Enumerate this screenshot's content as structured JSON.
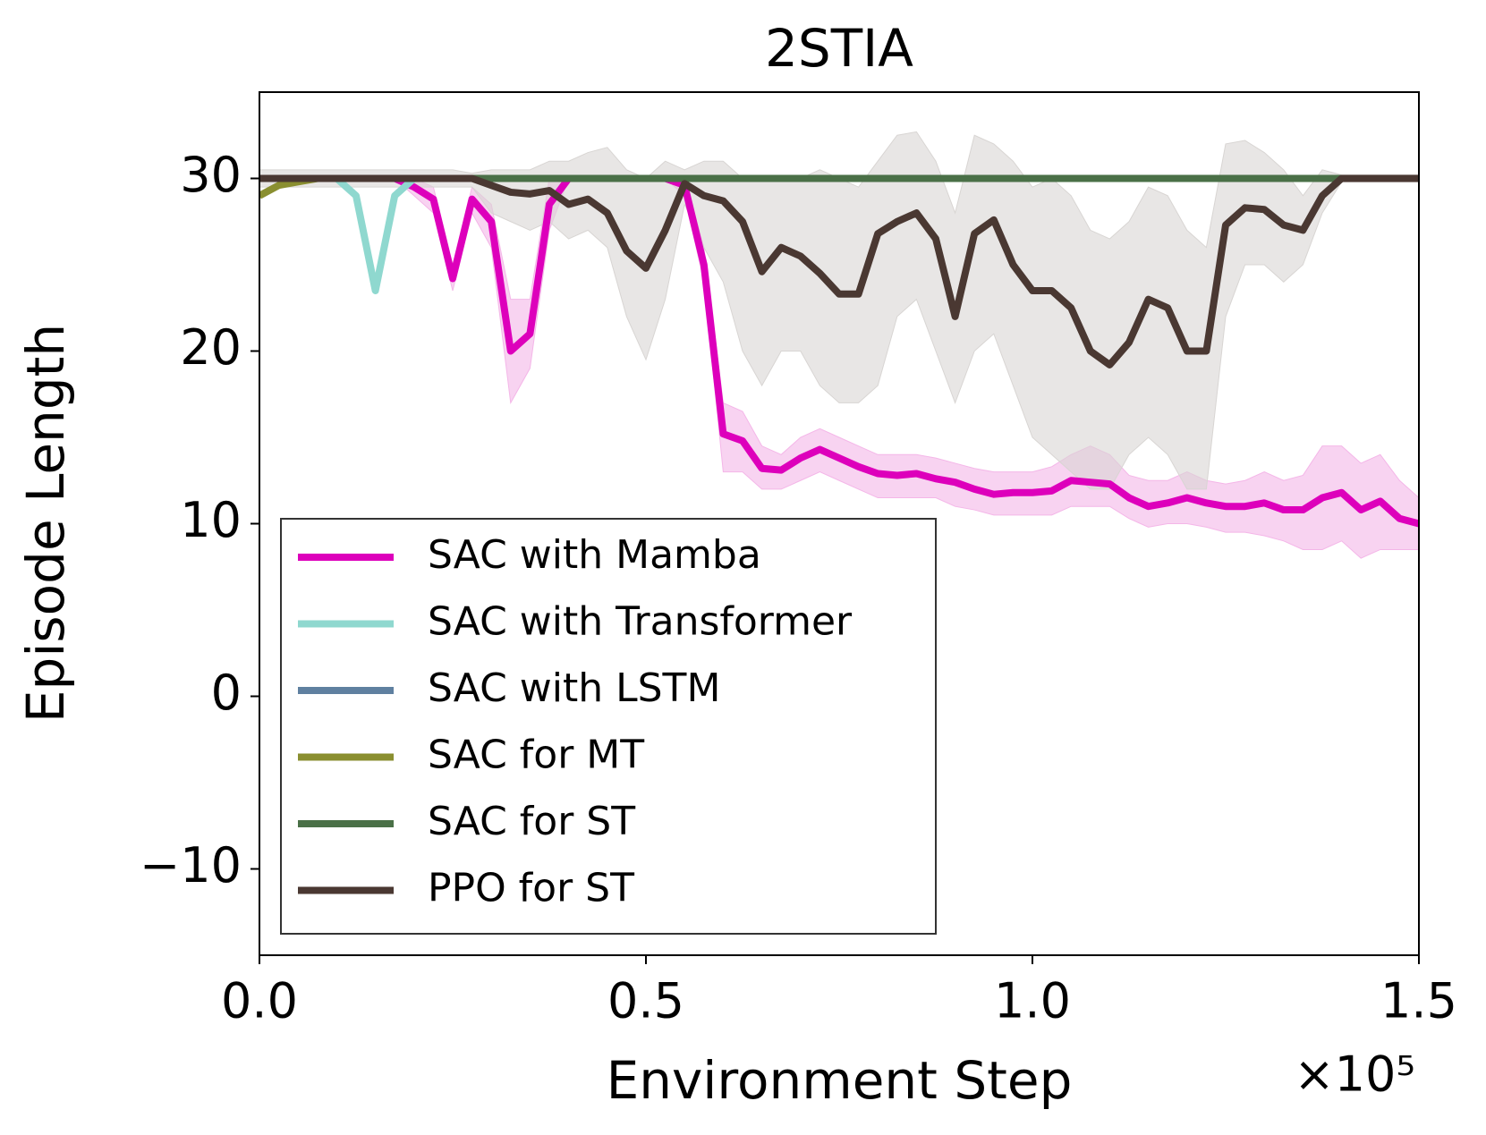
{
  "chart_data": {
    "type": "line",
    "title": "2STIA",
    "xlabel": "Environment Step",
    "ylabel": "Episode Length",
    "x_offset_label": "×10⁵",
    "xlim": [
      0,
      1.5
    ],
    "xticks": [
      {
        "value": 0,
        "label": "0.0"
      },
      0.5,
      {
        "value": 1,
        "label": "1.0"
      },
      1.5
    ],
    "ylim": [
      -15,
      35
    ],
    "yticks": [
      {
        "value": -10,
        "label": "−10"
      },
      0,
      10,
      20,
      30
    ],
    "legend": "lower left",
    "x": [
      0,
      0.025,
      0.05,
      0.075,
      0.1,
      0.125,
      0.15,
      0.175,
      0.2,
      0.225,
      0.25,
      0.275,
      0.3,
      0.325,
      0.35,
      0.375,
      0.4,
      0.425,
      0.45,
      0.475,
      0.5,
      0.525,
      0.55,
      0.575,
      0.6,
      0.625,
      0.65,
      0.675,
      0.7,
      0.725,
      0.75,
      0.775,
      0.8,
      0.825,
      0.85,
      0.875,
      0.9,
      0.925,
      0.95,
      0.975,
      1.0,
      1.025,
      1.05,
      1.075,
      1.1,
      1.125,
      1.15,
      1.175,
      1.2,
      1.225,
      1.25,
      1.275,
      1.3,
      1.325,
      1.35,
      1.375,
      1.4,
      1.425,
      1.45,
      1.475,
      1.5
    ],
    "series": [
      {
        "name": "SAC with Mamba",
        "color": "#dd00bb",
        "band_color": "#f4b6e8",
        "values": [
          30,
          30,
          30,
          30,
          30,
          30,
          30,
          30,
          29.5,
          28.8,
          24.2,
          28.8,
          27.5,
          20,
          21,
          28.5,
          30,
          30,
          30,
          30,
          30,
          30,
          29.6,
          25,
          15.2,
          14.8,
          13.2,
          13.1,
          13.8,
          14.3,
          13.8,
          13.3,
          12.9,
          12.8,
          12.9,
          12.6,
          12.4,
          12.0,
          11.7,
          11.8,
          11.8,
          11.9,
          12.5,
          12.4,
          12.3,
          11.5,
          11.0,
          11.2,
          11.5,
          11.2,
          11.0,
          11.0,
          11.2,
          10.8,
          10.8,
          11.5,
          11.8,
          10.8,
          11.3,
          10.3,
          10.0
        ],
        "lower": [
          30,
          30,
          30,
          30,
          30,
          30,
          30,
          30,
          29,
          28,
          23.5,
          28,
          26,
          17,
          19,
          27,
          30,
          30,
          30,
          30,
          30,
          30,
          29,
          24,
          13,
          13,
          12,
          12,
          12.5,
          13,
          12.5,
          12,
          11.5,
          11.5,
          11.5,
          11.5,
          11,
          10.8,
          10.5,
          10.5,
          10.5,
          10.5,
          11,
          11,
          11,
          10.3,
          9.8,
          10,
          10,
          9.8,
          9.5,
          9.5,
          9.3,
          9,
          8.5,
          8.5,
          9,
          8,
          8.5,
          8.5,
          8.5
        ],
        "upper": [
          30,
          30,
          30,
          30,
          30,
          30,
          30,
          30,
          30,
          29.5,
          25,
          29.5,
          28.5,
          23,
          23,
          30,
          30,
          30,
          30,
          30,
          30,
          30,
          30,
          26,
          17,
          16.5,
          14.5,
          14,
          15,
          15.5,
          15,
          14.5,
          14,
          14,
          14,
          13.8,
          13.5,
          13.2,
          13,
          13,
          13,
          13.3,
          14,
          14.5,
          14,
          12.8,
          12.5,
          12.5,
          13,
          12.5,
          12.3,
          12.5,
          13,
          12.5,
          12.8,
          14.5,
          14.5,
          13.5,
          14,
          12.5,
          11.5
        ]
      },
      {
        "name": "SAC with Transformer",
        "color": "#8fd8cf",
        "values": [
          30,
          30,
          30,
          30,
          30,
          29,
          23.5,
          29,
          30,
          30,
          30,
          30,
          30,
          30,
          30,
          30,
          30,
          30,
          30,
          30,
          30,
          30,
          30,
          30,
          30,
          30,
          30,
          30,
          30,
          30,
          30,
          30,
          30,
          30,
          30,
          30,
          30,
          30,
          30,
          30,
          30,
          30,
          30,
          30,
          30,
          30,
          30,
          30,
          30,
          30,
          30,
          30,
          30,
          30,
          30,
          30,
          30,
          30,
          30,
          30,
          30
        ]
      },
      {
        "name": "SAC with LSTM",
        "color": "#5f80a0",
        "values": [
          30,
          30,
          30,
          30,
          30,
          30,
          30,
          30,
          30,
          30,
          30,
          30,
          30,
          30,
          30,
          30,
          30,
          30,
          30,
          30,
          30,
          30,
          30,
          30,
          30,
          30,
          30,
          30,
          30,
          30,
          30,
          30,
          30,
          30,
          30,
          30,
          30,
          30,
          30,
          30,
          30,
          30,
          30,
          30,
          30,
          30,
          30,
          30,
          30,
          30,
          30,
          30,
          30,
          30,
          30,
          30,
          30,
          30,
          30,
          30,
          30
        ]
      },
      {
        "name": "SAC for MT",
        "color": "#8a8f30",
        "values": [
          29,
          29.6,
          29.8,
          30,
          30,
          30,
          30,
          30,
          30,
          30,
          30,
          30,
          30,
          30,
          30,
          30,
          30,
          30,
          30,
          30,
          30,
          30,
          30,
          30,
          30,
          30,
          30,
          30,
          30,
          30,
          30,
          30,
          30,
          30,
          30,
          30,
          30,
          30,
          30,
          30,
          30,
          30,
          30,
          30,
          30,
          30,
          30,
          30,
          30,
          30,
          30,
          30,
          30,
          30,
          30,
          30,
          30,
          30,
          30,
          30,
          30
        ]
      },
      {
        "name": "SAC for ST",
        "color": "#4a7047",
        "values": [
          30,
          30,
          30,
          30,
          30,
          30,
          30,
          30,
          30,
          30,
          30,
          30,
          30,
          30,
          30,
          30,
          30,
          30,
          30,
          30,
          30,
          30,
          30,
          30,
          30,
          30,
          30,
          30,
          30,
          30,
          30,
          30,
          30,
          30,
          30,
          30,
          30,
          30,
          30,
          30,
          30,
          30,
          30,
          30,
          30,
          30,
          30,
          30,
          30,
          30,
          30,
          30,
          30,
          30,
          30,
          30,
          30,
          30,
          30,
          30,
          30
        ]
      },
      {
        "name": "PPO for ST",
        "color": "#4a3832",
        "band_color": "#d8d5d3",
        "values": [
          30,
          30,
          30,
          30,
          30,
          30,
          30,
          30,
          30,
          30,
          30,
          30,
          29.6,
          29.2,
          29.1,
          29.3,
          28.5,
          28.8,
          28,
          25.8,
          24.8,
          27,
          29.7,
          29,
          28.7,
          27.5,
          24.6,
          26,
          25.5,
          24.5,
          23.3,
          23.3,
          26.8,
          27.5,
          28,
          26.5,
          22,
          26.8,
          27.6,
          25,
          23.5,
          23.5,
          22.5,
          20,
          19.2,
          20.5,
          23,
          22.5,
          20,
          20,
          27.3,
          28.3,
          28.2,
          27.3,
          27,
          29,
          30,
          30,
          30,
          30,
          30
        ],
        "lower": [
          29.5,
          29.5,
          29.5,
          29.5,
          29.5,
          29.5,
          29.5,
          29.5,
          29.5,
          29.5,
          29.5,
          29.5,
          28,
          27.5,
          27,
          27.5,
          26.5,
          27,
          26,
          22,
          19.5,
          23,
          28.5,
          26,
          24,
          20,
          18,
          20,
          20,
          18,
          17,
          17,
          18,
          22,
          23,
          20,
          17,
          20,
          21,
          18,
          15,
          14,
          13,
          12,
          12,
          14,
          15,
          14,
          12,
          12,
          22,
          25,
          25,
          24,
          25,
          28,
          29.8,
          29.8,
          29.8,
          29.8,
          29.8
        ],
        "upper": [
          30.5,
          30.5,
          30.5,
          30.5,
          30.5,
          30.5,
          30.5,
          30.5,
          30.5,
          30.5,
          30.5,
          30.3,
          30.5,
          30.5,
          30.5,
          31,
          31,
          31.5,
          31.8,
          30.5,
          30,
          31,
          30.5,
          31,
          31,
          30,
          30,
          30,
          30,
          30.5,
          30,
          29.5,
          31,
          32.5,
          32.7,
          31,
          28,
          32.5,
          32,
          31,
          29.5,
          30,
          29,
          27,
          26.5,
          27.5,
          29.5,
          29,
          27,
          26,
          32,
          32.2,
          31.5,
          30.5,
          29,
          30.5,
          30.2,
          30.2,
          30.2,
          30.2,
          30.2
        ]
      }
    ]
  }
}
